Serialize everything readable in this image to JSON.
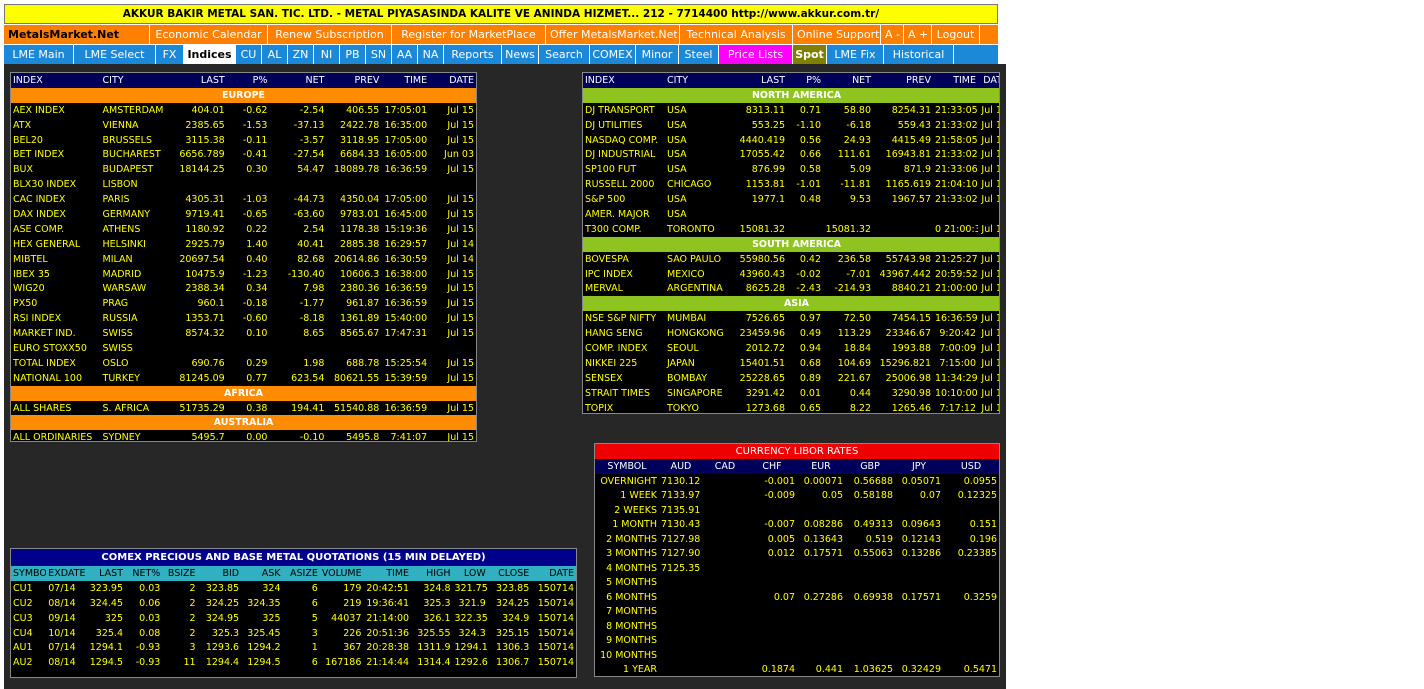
{
  "top_banner": "AKKUR BAKIR METAL SAN. TIC. LTD. - METAL PIYASASINDA KALITE VE ANINDA HIZMET... 212 - 7714400 http://www.akkur.com.tr/",
  "menu1": [
    "MetalsMarket.Net",
    "Economic Calendar",
    "Renew Subscription",
    "Register for MarketPlace",
    "Offer MetalsMarket.Net",
    "Technical Analysis",
    "Online Support",
    "A -",
    "A +",
    "Logout"
  ],
  "menu2": [
    "LME Main",
    "LME Select",
    "FX",
    "Indices",
    "CU",
    "AL",
    "ZN",
    "NI",
    "PB",
    "SN",
    "AA",
    "NA",
    "Reports",
    "News",
    "Search",
    "COMEX",
    "Minor",
    "Steel",
    "Price Lists",
    "Spot",
    "LME Fix",
    "Historical"
  ],
  "menu2_active": "Indices",
  "index_headers": [
    "INDEX",
    "CITY",
    "LAST",
    "P%",
    "NET",
    "PREV",
    "TIME",
    "DATE"
  ],
  "left_table": [
    {
      "section": "EUROPE"
    },
    [
      "AEX INDEX",
      "AMSTERDAM",
      "404.01",
      "-0.62",
      "-2.54",
      "406.55",
      "17:05:01",
      "Jul 15"
    ],
    [
      "ATX",
      "VIENNA",
      "2385.65",
      "-1.53",
      "-37.13",
      "2422.78",
      "16:35:00",
      "Jul 15"
    ],
    [
      "BEL20",
      "BRUSSELS",
      "3115.38",
      "-0.11",
      "-3.57",
      "3118.95",
      "17:05:00",
      "Jul 15"
    ],
    [
      "BET INDEX",
      "BUCHAREST",
      "6656.789",
      "-0.41",
      "-27.54",
      "6684.33",
      "16:05:00",
      "Jun 03"
    ],
    [
      "BUX",
      "BUDAPEST",
      "18144.25",
      "0.30",
      "54.47",
      "18089.78",
      "16:36:59",
      "Jul 15"
    ],
    [
      "BLX30 INDEX",
      "LISBON",
      "",
      "",
      "",
      "",
      "",
      ""
    ],
    [
      "CAC INDEX",
      "PARIS",
      "4305.31",
      "-1.03",
      "-44.73",
      "4350.04",
      "17:05:00",
      "Jul 15"
    ],
    [
      "DAX INDEX",
      "GERMANY",
      "9719.41",
      "-0.65",
      "-63.60",
      "9783.01",
      "16:45:00",
      "Jul 15"
    ],
    [
      "ASE COMP.",
      "ATHENS",
      "1180.92",
      "0.22",
      "2.54",
      "1178.38",
      "15:19:36",
      "Jul 15"
    ],
    [
      "HEX GENERAL",
      "HELSINKI",
      "2925.79",
      "1.40",
      "40.41",
      "2885.38",
      "16:29:57",
      "Jul 14"
    ],
    [
      "MIBTEL",
      "MILAN",
      "20697.54",
      "0.40",
      "82.68",
      "20614.86",
      "16:30:59",
      "Jul 14"
    ],
    [
      "IBEX 35",
      "MADRID",
      "10475.9",
      "-1.23",
      "-130.40",
      "10606.3",
      "16:38:00",
      "Jul 15"
    ],
    [
      "WIG20",
      "WARSAW",
      "2388.34",
      "0.34",
      "7.98",
      "2380.36",
      "16:36:59",
      "Jul 15"
    ],
    [
      "PX50",
      "PRAG",
      "960.1",
      "-0.18",
      "-1.77",
      "961.87",
      "16:36:59",
      "Jul 15"
    ],
    [
      "RSI INDEX",
      "RUSSIA",
      "1353.71",
      "-0.60",
      "-8.18",
      "1361.89",
      "15:40:00",
      "Jul 15"
    ],
    [
      "MARKET IND.",
      "SWISS",
      "8574.32",
      "0.10",
      "8.65",
      "8565.67",
      "17:47:31",
      "Jul 15"
    ],
    [
      "EURO STOXX50",
      "SWISS",
      "",
      "",
      "",
      "",
      "",
      ""
    ],
    [
      "TOTAL INDEX",
      "OSLO",
      "690.76",
      "0.29",
      "1.98",
      "688.78",
      "15:25:54",
      "Jul 15"
    ],
    [
      "NATIONAL 100",
      "TURKEY",
      "81245.09",
      "0.77",
      "623.54",
      "80621.55",
      "15:39:59",
      "Jul 15"
    ],
    {
      "section": "AFRICA"
    },
    [
      "ALL SHARES",
      "S. AFRICA",
      "51735.29",
      "0.38",
      "194.41",
      "51540.88",
      "16:36:59",
      "Jul 15"
    ],
    {
      "section": "AUSTRALIA"
    },
    [
      "ALL ORDINARIES",
      "SYDNEY",
      "5495.7",
      "0.00",
      "-0.10",
      "5495.8",
      "7:41:07",
      "Jul 15"
    ]
  ],
  "right_table": [
    {
      "section": "NORTH AMERICA"
    },
    [
      "DJ TRANSPORT",
      "USA",
      "8313.11",
      "0.71",
      "58.80",
      "8254.31",
      "21:33:05",
      "Jul 14"
    ],
    [
      "DJ UTILITIES",
      "USA",
      "553.25",
      "-1.10",
      "-6.18",
      "559.43",
      "21:33:02",
      "Jul 14"
    ],
    [
      "NASDAQ COMP.",
      "USA",
      "4440.419",
      "0.56",
      "24.93",
      "4415.49",
      "21:58:05",
      "Jul 14"
    ],
    [
      "DJ INDUSTRIAL",
      "USA",
      "17055.42",
      "0.66",
      "111.61",
      "16943.81",
      "21:33:02",
      "Jul 14"
    ],
    [
      "SP100 FUT",
      "USA",
      "876.99",
      "0.58",
      "5.09",
      "871.9",
      "21:33:06",
      "Jul 14"
    ],
    [
      "RUSSELL 2000",
      "CHICAGO",
      "1153.81",
      "-1.01",
      "-11.81",
      "1165.619",
      "21:04:10",
      "Jul 15"
    ],
    [
      "S&P 500",
      "USA",
      "1977.1",
      "0.48",
      "9.53",
      "1967.57",
      "21:33:02",
      "Jul 14"
    ],
    [
      "AMER. MAJOR",
      "USA",
      "",
      "",
      "",
      "",
      "",
      ""
    ],
    [
      "T300 COMP.",
      "TORONTO",
      "15081.32",
      "",
      "15081.32",
      "",
      "0 21:00:36",
      "Jul 15"
    ],
    {
      "section": "SOUTH AMERICA"
    },
    [
      "BOVESPA",
      "SAO PAULO",
      "55980.56",
      "0.42",
      "236.58",
      "55743.98",
      "21:25:27",
      "Jul 15"
    ],
    [
      "IPC INDEX",
      "MEXICO",
      "43960.43",
      "-0.02",
      "-7.01",
      "43967.442",
      "20:59:52",
      "Jul 15"
    ],
    [
      "MERVAL",
      "ARGENTINA",
      "8625.28",
      "-2.43",
      "-214.93",
      "8840.21",
      "21:00:00",
      "Jul 15"
    ],
    {
      "section": "ASIA"
    },
    [
      "NSE S&P NIFTY",
      "MUMBAI",
      "7526.65",
      "0.97",
      "72.50",
      "7454.15",
      "16:36:59",
      "Jul 15"
    ],
    [
      "HANG SENG",
      "HONGKONG",
      "23459.96",
      "0.49",
      "113.29",
      "23346.67",
      "9:20:42",
      "Jul 15"
    ],
    [
      "COMP. INDEX",
      "SEOUL",
      "2012.72",
      "0.94",
      "18.84",
      "1993.88",
      "7:00:09",
      "Jul 15"
    ],
    [
      "NIKKEI 225",
      "JAPAN",
      "15401.51",
      "0.68",
      "104.69",
      "15296.821",
      "7:15:00",
      "Jul 15"
    ],
    [
      "SENSEX",
      "BOMBAY",
      "25228.65",
      "0.89",
      "221.67",
      "25006.98",
      "11:34:29",
      "Jul 15"
    ],
    [
      "STRAIT TIMES",
      "SINGAPORE",
      "3291.42",
      "0.01",
      "0.44",
      "3290.98",
      "10:10:00",
      "Jul 15"
    ],
    [
      "TOPIX",
      "TOKYO",
      "1273.68",
      "0.65",
      "8.22",
      "1265.46",
      "7:17:12",
      "Jul 15"
    ]
  ],
  "comex": {
    "title": "COMEX PRECIOUS AND BASE METAL QUOTATIONS (15 MIN DELAYED)",
    "headers": [
      "SYMBOL",
      "EXDATE",
      "LAST",
      "NET%",
      "BSIZE",
      "BID",
      "ASK",
      "ASIZE",
      "VOLUME",
      "TIME",
      "HIGH",
      "LOW",
      "CLOSE",
      "DATE"
    ],
    "rows": [
      [
        "CU1",
        "07/14",
        "323.95",
        "0.03",
        "2",
        "323.85",
        "324",
        "6",
        "179",
        "20:42:51",
        "324.8",
        "321.75",
        "323.85",
        "150714"
      ],
      [
        "CU2",
        "08/14",
        "324.45",
        "0.06",
        "2",
        "324.25",
        "324.35",
        "6",
        "219",
        "19:36:41",
        "325.3",
        "321.9",
        "324.25",
        "150714"
      ],
      [
        "CU3",
        "09/14",
        "325",
        "0.03",
        "2",
        "324.95",
        "325",
        "5",
        "44037",
        "21:14:00",
        "326.1",
        "322.35",
        "324.9",
        "150714"
      ],
      [
        "CU4",
        "10/14",
        "325.4",
        "0.08",
        "2",
        "325.3",
        "325.45",
        "3",
        "226",
        "20:51:36",
        "325.55",
        "324.3",
        "325.15",
        "150714"
      ],
      [
        "AU1",
        "07/14",
        "1294.1",
        "-0.93",
        "3",
        "1293.6",
        "1294.2",
        "1",
        "367",
        "20:28:38",
        "1311.9",
        "1294.1",
        "1306.3",
        "150714"
      ],
      [
        "AU2",
        "08/14",
        "1294.5",
        "-0.93",
        "11",
        "1294.4",
        "1294.5",
        "6",
        "167186",
        "21:14:44",
        "1314.4",
        "1292.6",
        "1306.7",
        "150714"
      ]
    ]
  },
  "currency": {
    "title": "CURRENCY LIBOR RATES",
    "headers": [
      "SYMBOL",
      "AUD",
      "CAD",
      "CHF",
      "EUR",
      "GBP",
      "JPY",
      "USD"
    ],
    "rows": [
      [
        "OVERNIGHT",
        "7130.12",
        "",
        "-0.001",
        "0.00071",
        "0.56688",
        "0.05071",
        "0.0955"
      ],
      [
        "1 WEEK",
        "7133.97",
        "",
        "-0.009",
        "0.05",
        "0.58188",
        "0.07",
        "0.12325"
      ],
      [
        "2 WEEKS",
        "7135.91",
        "",
        "",
        "",
        "",
        "",
        ""
      ],
      [
        "1 MONTH",
        "7130.43",
        "",
        "-0.007",
        "0.08286",
        "0.49313",
        "0.09643",
        "0.151"
      ],
      [
        "2 MONTHS",
        "7127.98",
        "",
        "0.005",
        "0.13643",
        "0.519",
        "0.12143",
        "0.196"
      ],
      [
        "3 MONTHS",
        "7127.90",
        "",
        "0.012",
        "0.17571",
        "0.55063",
        "0.13286",
        "0.23385"
      ],
      [
        "4 MONTHS",
        "7125.35",
        "",
        "",
        "",
        "",
        "",
        ""
      ],
      [
        "5 MONTHS",
        "",
        "",
        "",
        "",
        "",
        "",
        ""
      ],
      [
        "6 MONTHS",
        "",
        "",
        "0.07",
        "0.27286",
        "0.69938",
        "0.17571",
        "0.3259"
      ],
      [
        "7 MONTHS",
        "",
        "",
        "",
        "",
        "",
        "",
        ""
      ],
      [
        "8 MONTHS",
        "",
        "",
        "",
        "",
        "",
        "",
        ""
      ],
      [
        "9 MONTHS",
        "",
        "",
        "",
        "",
        "",
        "",
        ""
      ],
      [
        "10 MONTHS",
        "",
        "",
        "",
        "",
        "",
        "",
        ""
      ],
      [
        "1 YEAR",
        "",
        "",
        "0.1874",
        "0.441",
        "1.03625",
        "0.32429",
        "0.5471"
      ]
    ]
  },
  "colors": {
    "banner": "#ffff00",
    "menu1": "#ff7f00",
    "menu2": "#1b88d8",
    "price_lists": "#ff00ff",
    "spot": "#808000",
    "europe_section": "#ff8c00",
    "americas_section": "#8fc31f",
    "comex_header": "#00008b",
    "currency_header": "#ee0000"
  }
}
